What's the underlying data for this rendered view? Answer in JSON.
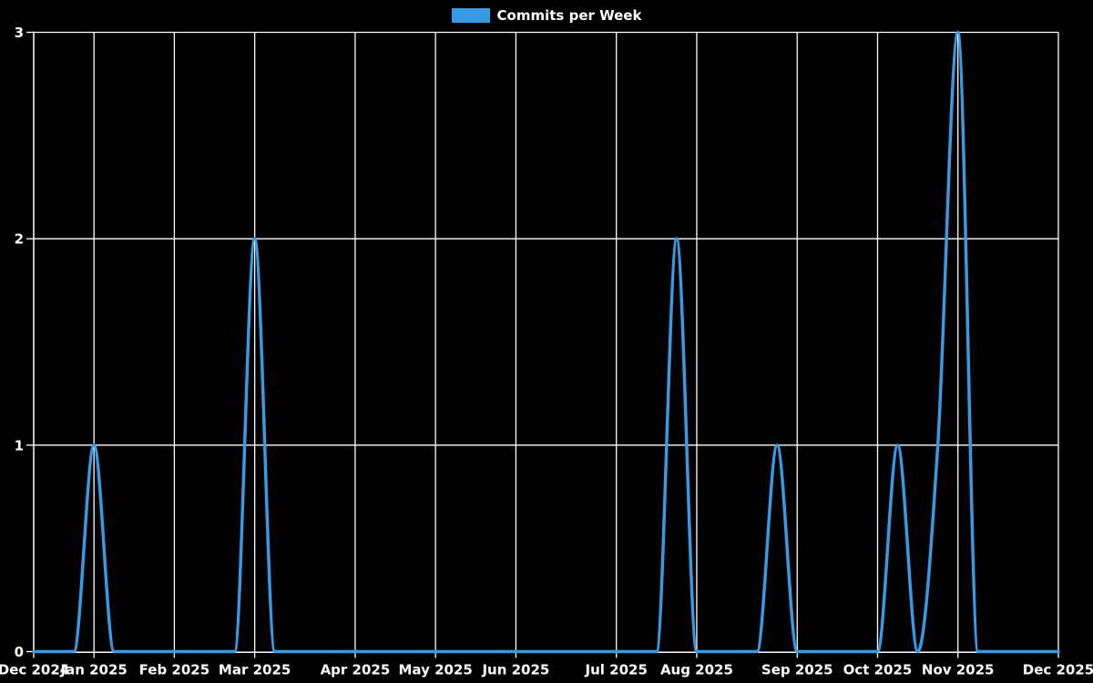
{
  "legend": {
    "label": "Commits per Week"
  },
  "colors": {
    "background": "#000000",
    "line": "#389ae3",
    "grid": "#ffffff",
    "axis": "#ffffff",
    "text": "#ffffff"
  },
  "chart_data": {
    "type": "line",
    "title": "",
    "xlabel": "",
    "ylabel": "",
    "legend_entries": [
      "Commits per Week"
    ],
    "legend_position": "top-center",
    "grid": true,
    "x_unit": "week",
    "num_weeks": 52,
    "ylim": [
      0,
      3
    ],
    "y_ticks": [
      0,
      1,
      2,
      3
    ],
    "x_tick_labels": [
      "Dec 2024",
      "Jan 2025",
      "Feb 2025",
      "Mar 2025",
      "Apr 2025",
      "May 2025",
      "Jun 2025",
      "Jul 2025",
      "Aug 2025",
      "Sep 2025",
      "Oct 2025",
      "Nov 2025",
      "Dec 2025"
    ],
    "x_tick_week_indices": [
      0,
      3,
      7,
      11,
      16,
      20,
      24,
      29,
      33,
      38,
      42,
      46,
      51
    ],
    "series": [
      {
        "name": "Commits per Week",
        "values": [
          0,
          0,
          0,
          1,
          0,
          0,
          0,
          0,
          0,
          0,
          0,
          2,
          0,
          0,
          0,
          0,
          0,
          0,
          0,
          0,
          0,
          0,
          0,
          0,
          0,
          0,
          0,
          0,
          0,
          0,
          0,
          0,
          2,
          0,
          0,
          0,
          0,
          1,
          0,
          0,
          0,
          0,
          0,
          1,
          0,
          1,
          3,
          0,
          0,
          0,
          0,
          0
        ]
      }
    ],
    "notable_peaks": [
      {
        "week_index": 3,
        "near_label": "Jan 2025",
        "value": 1
      },
      {
        "week_index": 11,
        "near_label": "Mar 2025",
        "value": 2
      },
      {
        "week_index": 32,
        "near_label": "Aug 2025",
        "value": 2
      },
      {
        "week_index": 37,
        "near_label": "Sep 2025",
        "value": 1
      },
      {
        "week_index": 43,
        "near_label": "Oct 2025",
        "value": 1
      },
      {
        "week_index": 45,
        "near_label": "Nov 2025",
        "value": 1
      },
      {
        "week_index": 46,
        "near_label": "Nov 2025",
        "value": 3
      }
    ]
  }
}
